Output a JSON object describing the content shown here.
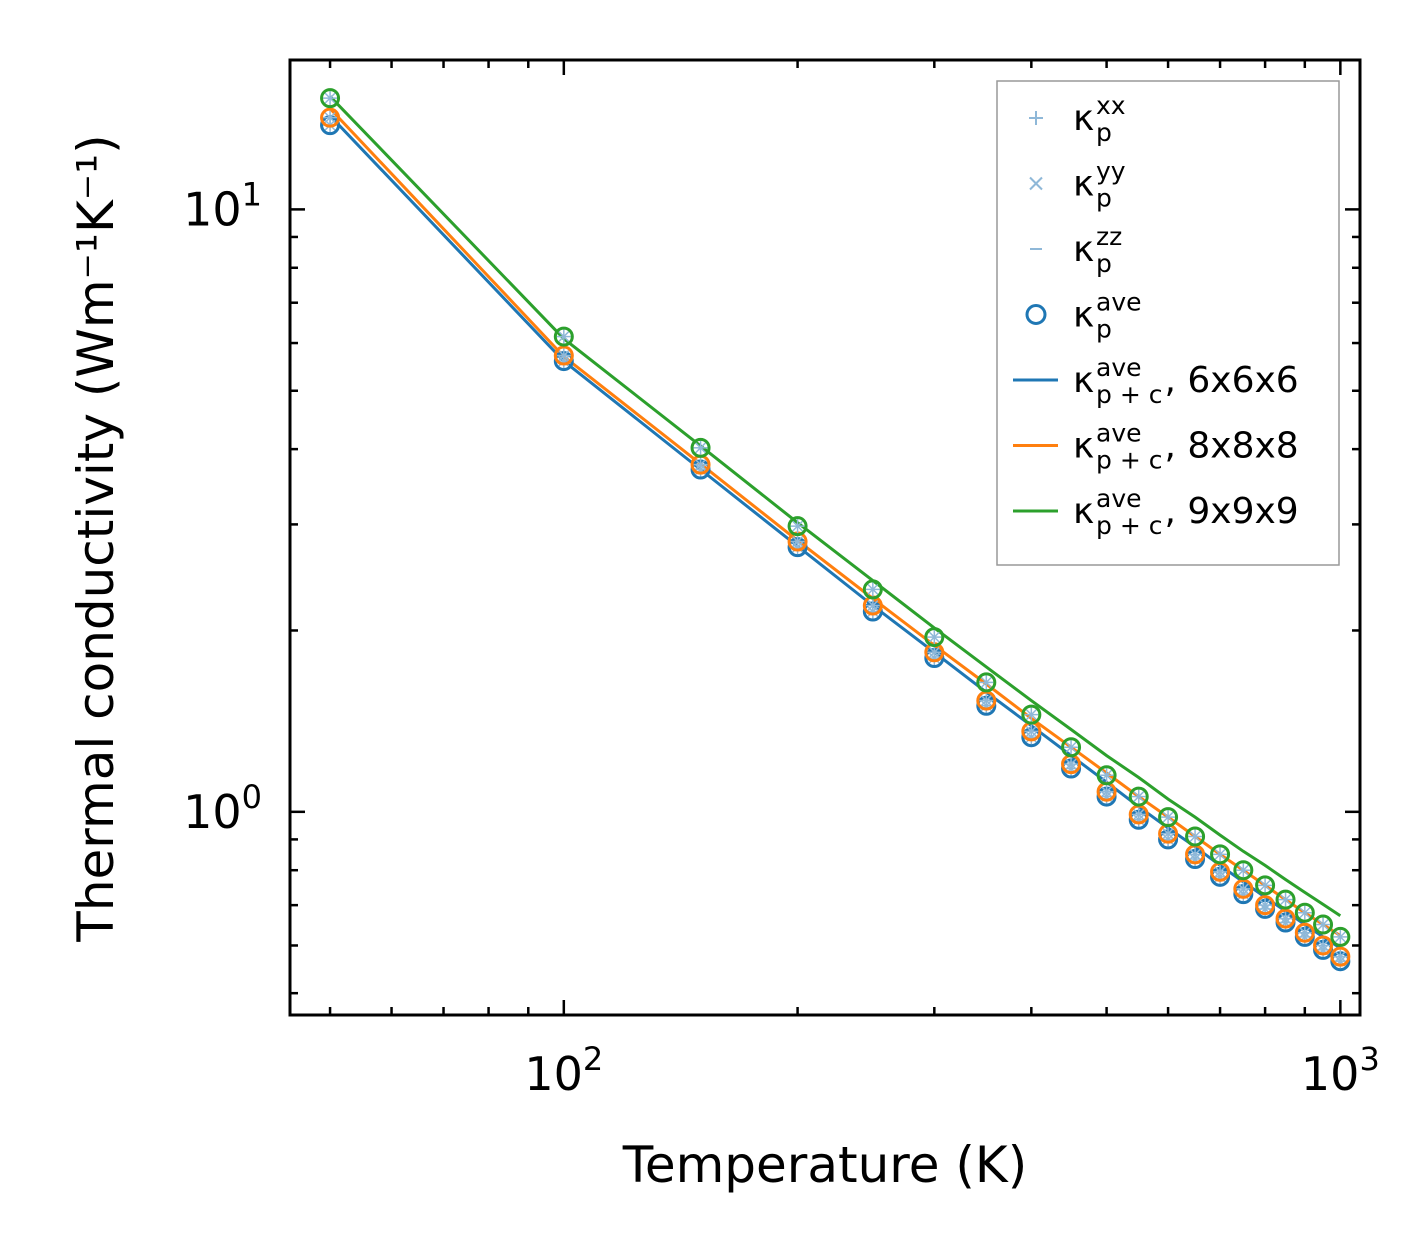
{
  "chart_data": {
    "type": "line",
    "scale": {
      "x": "log",
      "y": "log"
    },
    "xlabel": "Temperature (K)",
    "ylabel": "Thermal conductivity (Wm⁻¹K⁻¹)",
    "xlim": [
      44.4,
      1060
    ],
    "ylim": [
      0.46,
      17.7
    ],
    "x_ticks": [
      {
        "value": 100,
        "base": "10",
        "exp": "2"
      },
      {
        "value": 1000,
        "base": "10",
        "exp": "3"
      }
    ],
    "y_ticks": [
      {
        "value": 1,
        "base": "10",
        "exp": "0"
      },
      {
        "value": 10,
        "base": "10",
        "exp": "1"
      }
    ],
    "grid": false,
    "legend_position": "top-right",
    "x": [
      50,
      100,
      150,
      200,
      250,
      300,
      350,
      400,
      450,
      500,
      550,
      600,
      650,
      700,
      750,
      800,
      850,
      900,
      950,
      1000
    ],
    "series": [
      {
        "name": "6x6x6",
        "color": "#1f77b4",
        "points": [
          13.8,
          5.6,
          3.7,
          2.75,
          2.15,
          1.8,
          1.5,
          1.33,
          1.18,
          1.06,
          0.97,
          0.9,
          0.835,
          0.78,
          0.73,
          0.69,
          0.655,
          0.62,
          0.59,
          0.565
        ],
        "line": [
          14.3,
          5.6,
          3.7,
          2.76,
          2.2,
          1.84,
          1.58,
          1.39,
          1.24,
          1.12,
          1.02,
          0.94,
          0.875,
          0.815,
          0.765,
          0.722,
          0.684,
          0.65,
          0.62,
          0.594
        ]
      },
      {
        "name": "8x8x8",
        "color": "#ff7f0e",
        "points": [
          14.2,
          5.72,
          3.77,
          2.81,
          2.2,
          1.84,
          1.53,
          1.36,
          1.2,
          1.08,
          0.99,
          0.92,
          0.85,
          0.795,
          0.745,
          0.7,
          0.665,
          0.63,
          0.6,
          0.575
        ],
        "line": [
          14.7,
          5.7,
          3.78,
          2.82,
          2.26,
          1.89,
          1.63,
          1.43,
          1.28,
          1.16,
          1.06,
          0.98,
          0.91,
          0.85,
          0.8,
          0.755,
          0.715,
          0.68,
          0.65,
          0.623
        ]
      },
      {
        "name": "9x9x9",
        "color": "#2ca02c",
        "points": [
          15.3,
          6.15,
          4.02,
          2.98,
          2.34,
          1.95,
          1.64,
          1.45,
          1.28,
          1.15,
          1.06,
          0.98,
          0.91,
          0.85,
          0.8,
          0.755,
          0.715,
          0.68,
          0.65,
          0.62
        ],
        "line": [
          15.4,
          6.1,
          4.05,
          3.02,
          2.42,
          2.02,
          1.74,
          1.53,
          1.37,
          1.24,
          1.14,
          1.05,
          0.98,
          0.915,
          0.86,
          0.815,
          0.772,
          0.735,
          0.702,
          0.672
        ]
      }
    ],
    "legend": [
      {
        "id": "xx",
        "kind": "plus",
        "label": "κ",
        "sub": "p",
        "sup": "xx",
        "suffix": ""
      },
      {
        "id": "yy",
        "kind": "cross",
        "label": "κ",
        "sub": "p",
        "sup": "yy",
        "suffix": ""
      },
      {
        "id": "zz",
        "kind": "dash",
        "label": "κ",
        "sub": "p",
        "sup": "zz",
        "suffix": ""
      },
      {
        "id": "ave",
        "kind": "circle",
        "label": "κ",
        "sub": "p",
        "sup": "ave",
        "suffix": ""
      },
      {
        "id": "line-6",
        "kind": "line",
        "series": 0,
        "label": "κ",
        "sub": "p + c",
        "sup": "ave",
        "suffix": ", 6x6x6"
      },
      {
        "id": "line-8",
        "kind": "line",
        "series": 1,
        "label": "κ",
        "sub": "p + c",
        "sup": "ave",
        "suffix": ", 8x8x8"
      },
      {
        "id": "line-9",
        "kind": "line",
        "series": 2,
        "label": "κ",
        "sub": "p + c",
        "sup": "ave",
        "suffix": ", 9x9x9"
      }
    ],
    "marker_colors": {
      "component": "#8fb8d8",
      "circle": "#1f77b4"
    }
  }
}
